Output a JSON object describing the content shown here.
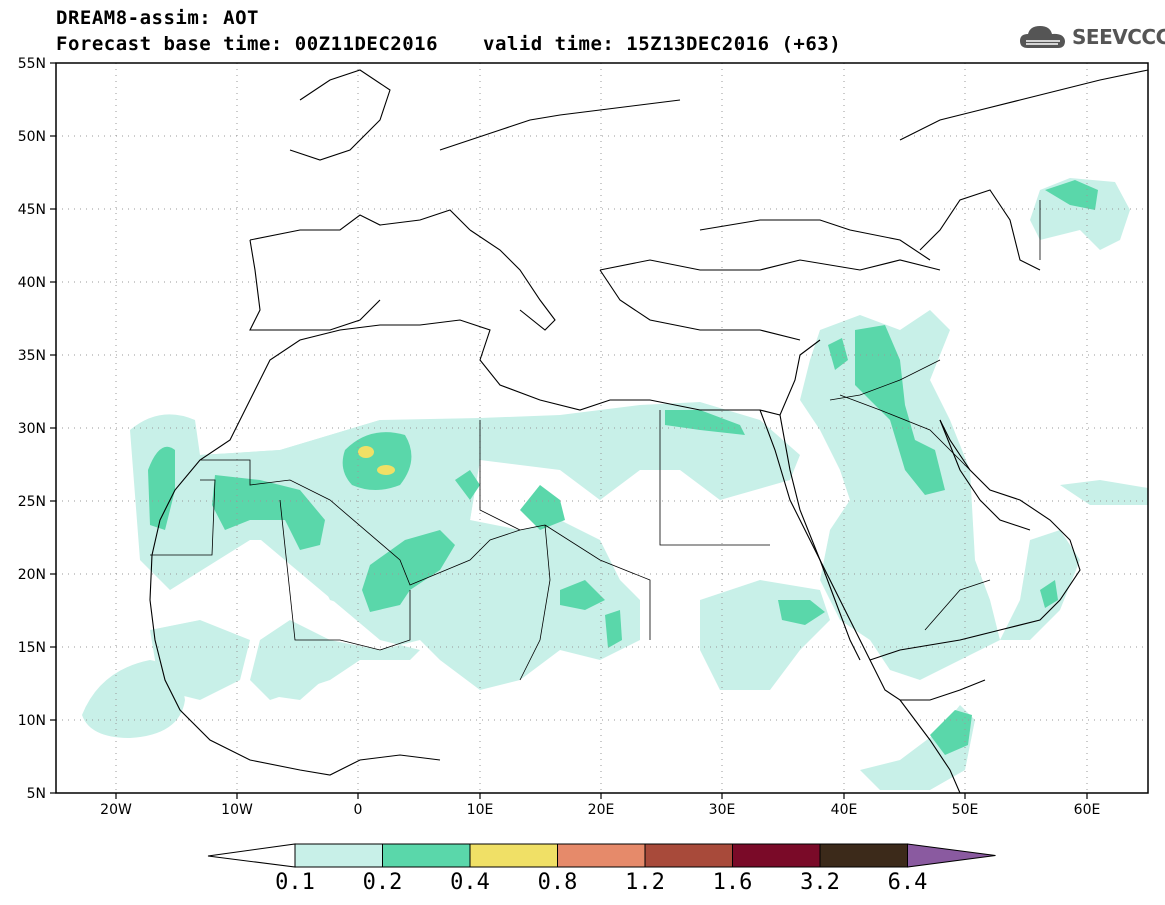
{
  "header": {
    "line1": "DREAM8-assim: AOT",
    "line2": "Forecast base time: 00Z11DEC2016",
    "line2b": "valid time: 15Z13DEC2016 (+63)",
    "logo": "SEEVCCC"
  },
  "axes": {
    "lat_labels": [
      "55N",
      "50N",
      "45N",
      "40N",
      "35N",
      "30N",
      "25N",
      "20N",
      "15N",
      "10N",
      "5N"
    ],
    "lon_labels": [
      "20W",
      "10W",
      "0",
      "10E",
      "20E",
      "30E",
      "40E",
      "50E",
      "60E"
    ]
  },
  "legend": {
    "thresholds": [
      "0.1",
      "0.2",
      "0.4",
      "0.8",
      "1.2",
      "1.6",
      "3.2",
      "6.4"
    ],
    "colors": [
      "#c8f0e8",
      "#5ad7aa",
      "#f0e066",
      "#e68a6a",
      "#a84a3a",
      "#7a0a28",
      "#3c2a1a",
      "#8a5aa0"
    ]
  },
  "map_data": {
    "region": "North Africa, Middle East and Europe",
    "lat_range": [
      5,
      55
    ],
    "lon_range": [
      -25,
      65
    ],
    "field": "AOT",
    "dust_regions": [
      {
        "name": "Western Sahara coast",
        "level": "0.2-0.4"
      },
      {
        "name": "Algeria central",
        "level": "0.4-0.8"
      },
      {
        "name": "Iraq",
        "level": "0.2-0.4"
      },
      {
        "name": "Sahel / Niger",
        "level": "0.2-0.4"
      }
    ]
  }
}
